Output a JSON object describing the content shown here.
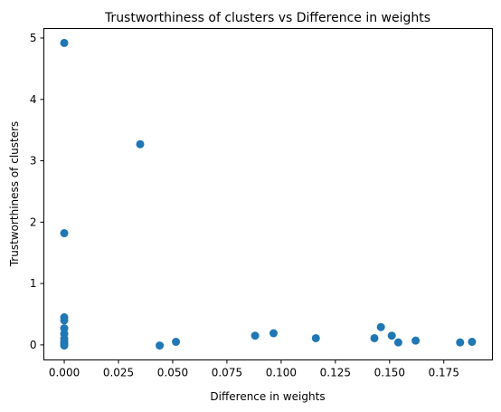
{
  "chart_data": {
    "type": "scatter",
    "title": "Trustworthiness of clusters vs Difference in weights",
    "xlabel": "Difference in weights",
    "ylabel": "Trustworthiness of clusters",
    "xlim": [
      -0.0094,
      0.1974
    ],
    "ylim": [
      -0.245,
      5.155
    ],
    "xticks": [
      0.0,
      0.025,
      0.05,
      0.075,
      0.1,
      0.125,
      0.15,
      0.175
    ],
    "xtick_labels": [
      "0.000",
      "0.025",
      "0.050",
      "0.075",
      "0.100",
      "0.125",
      "0.150",
      "0.175"
    ],
    "yticks": [
      0,
      1,
      2,
      3,
      4,
      5
    ],
    "ytick_labels": [
      "0",
      "1",
      "2",
      "3",
      "4",
      "5"
    ],
    "grid": false,
    "marker_color": "#1f77b4",
    "series": [
      {
        "x": [
          0.0,
          0.0,
          0.0,
          0.0,
          0.0,
          0.0,
          0.0,
          0.0,
          0.0,
          0.0,
          0.035,
          0.044,
          0.0515,
          0.088,
          0.0965,
          0.116,
          0.143,
          0.146,
          0.151,
          0.154,
          0.162,
          0.1825,
          0.188
        ],
        "y": [
          4.92,
          1.82,
          0.45,
          0.4,
          0.27,
          0.18,
          0.1,
          0.05,
          0.02,
          -0.01,
          3.27,
          -0.01,
          0.05,
          0.15,
          0.19,
          0.11,
          0.11,
          0.29,
          0.15,
          0.04,
          0.07,
          0.04,
          0.05
        ]
      }
    ]
  }
}
